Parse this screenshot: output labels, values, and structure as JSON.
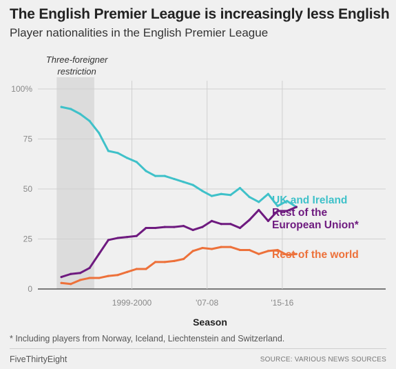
{
  "header": {
    "title": "The English Premier League is increasingly less English",
    "subtitle": "Player nationalities in the English Premier League"
  },
  "footer": {
    "footnote": "* Including players from Norway, Iceland, Liechtenstein and Switzerland.",
    "brand": "FiveThirtyEight",
    "source": "SOURCE: VARIOUS NEWS SOURCES"
  },
  "chart_data": {
    "type": "line",
    "title": "The English Premier League is increasingly less English",
    "subtitle": "Player nationalities in the English Premier League",
    "xlabel": "Season",
    "ylabel": "",
    "x": [
      1992,
      1993,
      1994,
      1995,
      1996,
      1997,
      1998,
      1999,
      2000,
      2001,
      2002,
      2003,
      2004,
      2005,
      2006,
      2007,
      2008,
      2009,
      2010,
      2011,
      2012,
      2013,
      2014,
      2015,
      2016,
      2017
    ],
    "x_range": [
      1989.5,
      2026.5
    ],
    "x_ticks": [
      {
        "value": 1999.5,
        "label": "1999-2000"
      },
      {
        "value": 2007.5,
        "label": "'07-08"
      },
      {
        "value": 2015.5,
        "label": "'15-16"
      }
    ],
    "ylim": [
      0,
      100
    ],
    "y_ticks": [
      0,
      25,
      50,
      75,
      100
    ],
    "y_tick_labels": [
      "0",
      "25",
      "50",
      "75",
      "100%"
    ],
    "grid": true,
    "shaded_region": {
      "x": [
        1992,
        1995
      ],
      "label": [
        "Three-foreigner",
        "restriction"
      ]
    },
    "series": [
      {
        "name": "UK and Ireland",
        "label_lines": [
          "UK and Ireland"
        ],
        "color": "#3fc1c9",
        "values": [
          91,
          90,
          87.5,
          84,
          78,
          69,
          68,
          65.5,
          63.5,
          59,
          56.5,
          56.5,
          55,
          53.5,
          52,
          49,
          46.5,
          47.5,
          47,
          50.5,
          46,
          43.5,
          47.5,
          41.5,
          44,
          41
        ]
      },
      {
        "name": "Rest of the European Union*",
        "label_lines": [
          "Rest of the",
          "European Union*"
        ],
        "color": "#6e1a7f",
        "values": [
          6,
          7.5,
          8,
          10.5,
          17.5,
          24.5,
          25.5,
          26,
          26.5,
          30.5,
          30.5,
          31,
          31,
          31.5,
          29.5,
          31,
          34,
          32.5,
          32.5,
          30.5,
          34.5,
          39.5,
          34,
          39,
          39,
          41
        ]
      },
      {
        "name": "Rest of the world",
        "label_lines": [
          "Rest of the world"
        ],
        "color": "#ed713a",
        "values": [
          3,
          2.5,
          4.5,
          5.5,
          5.5,
          6.5,
          7,
          8.5,
          10,
          10,
          13.5,
          13.5,
          14,
          15,
          19,
          20.5,
          20,
          21,
          21,
          19.5,
          19.5,
          17.5,
          19,
          19.5,
          17,
          17.5
        ]
      }
    ]
  }
}
